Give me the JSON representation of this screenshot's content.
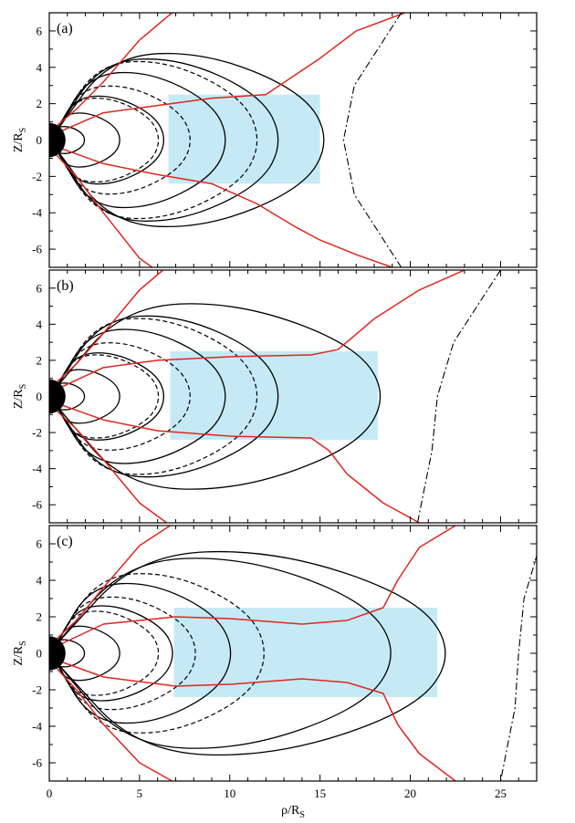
{
  "chart_data": {
    "type": "line",
    "shared_x_axis": {
      "label": "ρ/R",
      "label_sub": "S",
      "range": [
        0,
        27
      ],
      "ticks": [
        0,
        5,
        10,
        15,
        20,
        25
      ],
      "tick_labels": [
        "0",
        "5",
        "10",
        "15",
        "20",
        "25"
      ]
    },
    "shared_y_axis": {
      "label": "Z/R",
      "label_sub": "S",
      "range": [
        -7,
        7
      ],
      "ticks": [
        -6,
        -4,
        -2,
        0,
        2,
        4,
        6
      ],
      "tick_labels": [
        "-6",
        "-4",
        "-2",
        "0",
        "2",
        "4",
        "6"
      ]
    },
    "grid": false,
    "colors": {
      "field_lines": "#000000",
      "dipole_lines": "#000000",
      "red_curves": "#e0261f",
      "magnetopause": "#000000",
      "shaded_region": "#c5eaf5",
      "planet": "#000000"
    },
    "panels": [
      {
        "label": "(a)",
        "solid_field_lines_equator_crossing": [
          2,
          4,
          6.5,
          10,
          13,
          15.6
        ],
        "dashed_field_lines_equator_crossing": [
          6.2,
          8,
          11.8
        ],
        "shaded_region": {
          "x": [
            6.6,
            15
          ],
          "y": [
            -2.4,
            2.5
          ]
        },
        "magnetopause_nose_x": 16.3,
        "red_curves": [
          {
            "name": "upper-outer",
            "x": [
              0.2,
              1.5,
              3,
              5,
              6.8
            ],
            "y": [
              0.6,
              1.7,
              3.2,
              5.5,
              7
            ]
          },
          {
            "name": "upper-inner",
            "x": [
              0.2,
              3,
              6,
              9,
              12,
              13.5,
              15,
              17,
              19.7
            ],
            "y": [
              0.3,
              1.5,
              1.9,
              2.3,
              2.5,
              3.5,
              4.5,
              6,
              7
            ]
          },
          {
            "name": "lower-inner",
            "x": [
              0.2,
              3,
              6,
              9,
              11.5,
              13.5,
              15,
              17,
              19
            ],
            "y": [
              -0.3,
              -1.3,
              -1.9,
              -2.4,
              -3.5,
              -4.7,
              -5.5,
              -6.3,
              -7
            ]
          },
          {
            "name": "lower-outer",
            "x": [
              0.2,
              1.5,
              3,
              5,
              5.7
            ],
            "y": [
              -0.6,
              -2,
              -4,
              -6.5,
              -7
            ]
          }
        ],
        "magnetopause": {
          "x": [
            19.5,
            16.9,
            16.3,
            16.9,
            19.5
          ],
          "y": [
            7,
            3,
            0,
            -3,
            -7
          ]
        }
      },
      {
        "label": "(b)",
        "solid_field_lines_equator_crossing": [
          2,
          4,
          6.5,
          10,
          13,
          18.8
        ],
        "dashed_field_lines_equator_crossing": [
          6.2,
          8,
          11.8
        ],
        "shaded_region": {
          "x": [
            6.7,
            18.2
          ],
          "y": [
            -2.4,
            2.5
          ]
        },
        "magnetopause_nose_x": 21.5,
        "red_curves": [
          {
            "name": "upper-outer",
            "x": [
              0.2,
              1.5,
              3,
              5,
              6.3
            ],
            "y": [
              0.6,
              1.8,
              3.5,
              5.9,
              7
            ]
          },
          {
            "name": "upper-inner",
            "x": [
              0.2,
              3,
              6,
              10,
              14.5,
              16,
              18,
              20.5,
              23
            ],
            "y": [
              0.3,
              1.6,
              2,
              2.2,
              2.3,
              2.6,
              4.3,
              5.9,
              7
            ]
          },
          {
            "name": "lower-inner",
            "x": [
              0.2,
              3,
              6,
              10,
              14.5,
              15.5,
              16.5,
              18.5,
              20.5
            ],
            "y": [
              -0.3,
              -1.3,
              -1.9,
              -2.2,
              -2.3,
              -3,
              -4.3,
              -5.9,
              -7
            ]
          },
          {
            "name": "lower-outer",
            "x": [
              0.2,
              1.5,
              3,
              5,
              6.5
            ],
            "y": [
              -0.6,
              -1.8,
              -3.5,
              -5.9,
              -7
            ]
          }
        ],
        "magnetopause": {
          "x": [
            25,
            22.4,
            21.5,
            21.2,
            20.4
          ],
          "y": [
            7,
            3,
            0,
            -3,
            -7
          ]
        }
      },
      {
        "label": "(c)",
        "solid_field_lines_equator_crossing": [
          2,
          4,
          7,
          10.3,
          19.4,
          22.5
        ],
        "dashed_field_lines_equator_crossing": [
          6.2,
          8.3,
          12.2
        ],
        "shaded_region": {
          "x": [
            6.9,
            21.5
          ],
          "y": [
            -2.4,
            2.5
          ]
        },
        "magnetopause_nose_x": 26,
        "red_curves": [
          {
            "name": "upper-outer",
            "x": [
              0.2,
              1.5,
              3,
              5,
              6.7
            ],
            "y": [
              0.6,
              1.8,
              3.6,
              5.9,
              7
            ]
          },
          {
            "name": "upper-inner",
            "x": [
              0.2,
              3,
              7,
              10,
              14,
              16.5,
              18.5,
              19.3,
              20.5,
              22.5
            ],
            "y": [
              0.3,
              1.6,
              2,
              1.9,
              1.6,
              1.8,
              2.5,
              4,
              5.8,
              7
            ]
          },
          {
            "name": "lower-inner",
            "x": [
              0.2,
              3,
              7,
              10,
              14,
              16.5,
              18.5,
              19.3,
              20.5,
              22.5
            ],
            "y": [
              -0.3,
              -1.3,
              -1.8,
              -1.7,
              -1.4,
              -1.6,
              -2.2,
              -3.9,
              -5.5,
              -7
            ]
          },
          {
            "name": "lower-outer",
            "x": [
              0.2,
              1.5,
              3,
              5,
              6.8
            ],
            "y": [
              -0.6,
              -2,
              -3.9,
              -6,
              -7
            ]
          }
        ],
        "magnetopause": {
          "x": [
            27.5,
            26.3,
            26,
            25.8,
            25
          ],
          "y": [
            7,
            3,
            0,
            -3,
            -7
          ]
        }
      }
    ]
  }
}
